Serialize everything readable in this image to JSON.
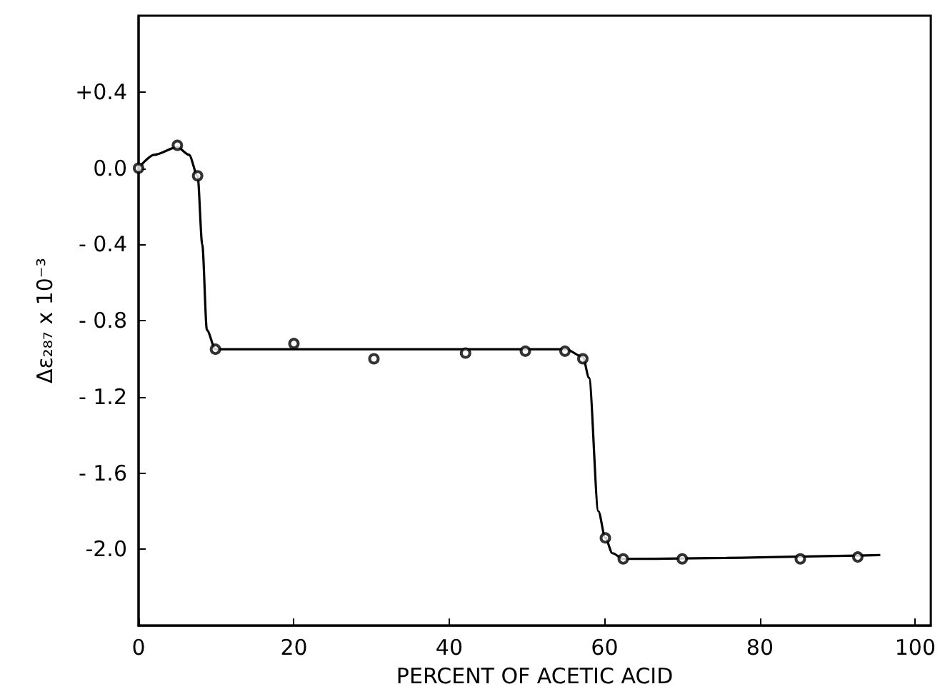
{
  "chart_data": {
    "type": "scatter",
    "xlabel": "PERCENT OF ACETIC ACID",
    "ylabel": "Δε₂₈₇ x 10⁻³",
    "xlim": [
      0,
      102
    ],
    "xticks": [
      0,
      20,
      40,
      60,
      80,
      100
    ],
    "ylim": [
      -2.4,
      0.8
    ],
    "yticks": [
      {
        "value": 0.4,
        "label": "+0.4"
      },
      {
        "value": 0,
        "label": "0.0"
      },
      {
        "value": -0.4,
        "label": "- 0.4"
      },
      {
        "value": -0.8,
        "label": "- 0.8"
      },
      {
        "value": -1.2,
        "label": "- 1.2"
      },
      {
        "value": -1.6,
        "label": "- 1.6"
      },
      {
        "value": -2.0,
        "label": "-2.0"
      }
    ],
    "grid": false,
    "line_style": "solid",
    "series": [
      {
        "type": "line",
        "marker": "none",
        "color": "#000000",
        "x": [
          0,
          2,
          5,
          6.5,
          7.6,
          8.2,
          8.8,
          9.9,
          20,
          40,
          55,
          57.2,
          58,
          59.2,
          60.1,
          61,
          62.4,
          95.5
        ],
        "values": [
          0,
          0.07,
          0.11,
          0.07,
          -0.04,
          -0.4,
          -0.85,
          -0.95,
          -0.95,
          -0.95,
          -0.95,
          -0.99,
          -1.1,
          -1.8,
          -1.94,
          -2.02,
          -2.05,
          -2.03
        ]
      },
      {
        "marker": "circle",
        "color": "#000000",
        "x": [
          0,
          5,
          7.6,
          9.9,
          20,
          30.3,
          42.1,
          49.8,
          54.9,
          57.2,
          60.1,
          62.4,
          70,
          85.2,
          92.6
        ],
        "values": [
          0,
          0.12,
          -0.04,
          -0.95,
          -0.92,
          -1.0,
          -0.97,
          -0.96,
          -0.96,
          -1.0,
          -1.94,
          -2.05,
          -2.05,
          -2.05,
          -2.04
        ]
      }
    ]
  }
}
